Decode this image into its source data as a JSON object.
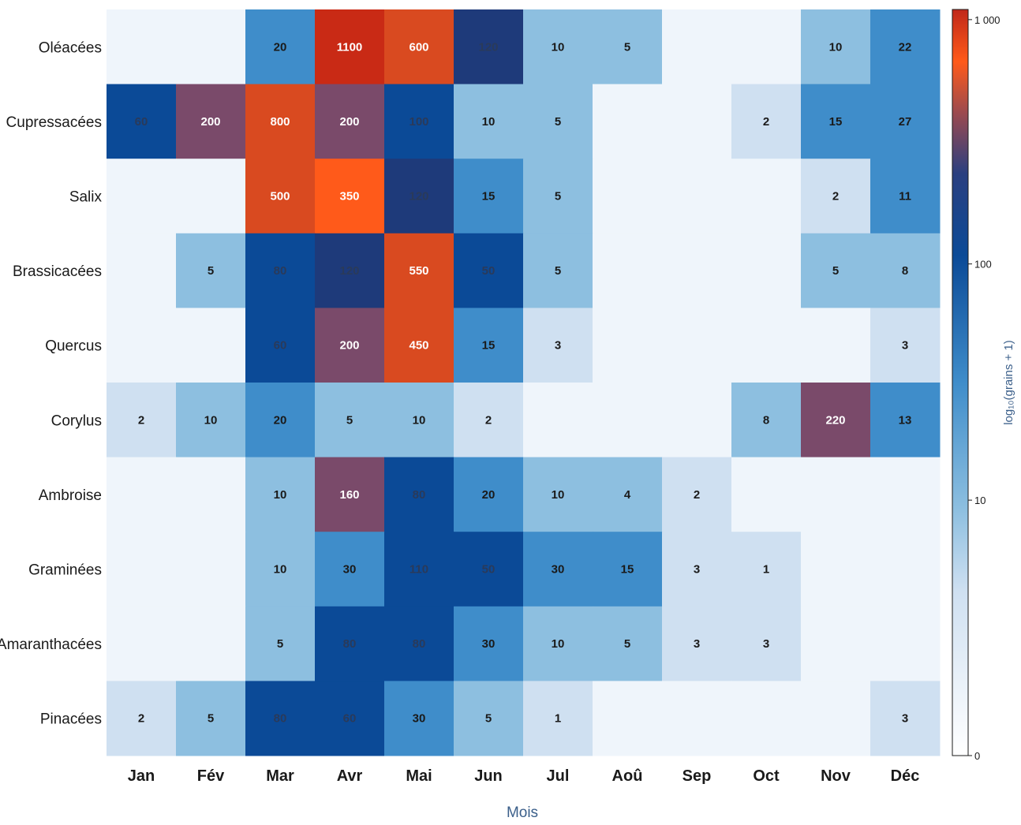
{
  "chart_data": {
    "type": "heatmap",
    "xlabel": "Mois",
    "colorbar_label": "log₁₀(grains + 1)",
    "colorbar_ticks": [
      {
        "value": 0,
        "label": "0"
      },
      {
        "value": 10,
        "label": "10"
      },
      {
        "value": 100,
        "label": "100"
      },
      {
        "value": 1000,
        "label": "1 000"
      }
    ],
    "colorbar_range": [
      0,
      1100
    ],
    "colors": {
      "empty": "#eff5fb",
      "low": "#cfe0f1",
      "mid": "#8dbfe0",
      "blue": "#3f8dca",
      "dark": "#0b4a97",
      "navy": "#1e3a7a",
      "purple": "#7a4a6a",
      "red": "#d94a20",
      "orange": "#ff5a1a",
      "top": "#c92a15"
    },
    "columns": [
      "Jan",
      "Fév",
      "Mar",
      "Avr",
      "Mai",
      "Jun",
      "Jul",
      "Aoû",
      "Sep",
      "Oct",
      "Nov",
      "Déc"
    ],
    "rows": [
      "Oléacées",
      "Cupressacées",
      "Salix",
      "Brassicacées",
      "Quercus",
      "Corylus",
      "Ambroise",
      "Graminées",
      "Amaranthacées",
      "Pinacées"
    ],
    "values": [
      [
        null,
        null,
        20,
        1100,
        600,
        120,
        10,
        5,
        null,
        null,
        10,
        22
      ],
      [
        60,
        200,
        800,
        200,
        100,
        10,
        5,
        null,
        null,
        2,
        15,
        27
      ],
      [
        null,
        null,
        500,
        350,
        120,
        15,
        5,
        null,
        null,
        null,
        2,
        11
      ],
      [
        null,
        5,
        80,
        120,
        550,
        50,
        5,
        null,
        null,
        null,
        5,
        8
      ],
      [
        null,
        null,
        60,
        200,
        450,
        15,
        3,
        null,
        null,
        null,
        null,
        3
      ],
      [
        2,
        10,
        20,
        5,
        10,
        2,
        null,
        null,
        null,
        8,
        220,
        13
      ],
      [
        null,
        null,
        10,
        160,
        80,
        20,
        10,
        4,
        2,
        null,
        null,
        null
      ],
      [
        null,
        null,
        10,
        30,
        110,
        50,
        30,
        15,
        3,
        1,
        null,
        null
      ],
      [
        null,
        null,
        5,
        80,
        80,
        30,
        10,
        5,
        3,
        3,
        null,
        null
      ],
      [
        2,
        5,
        80,
        60,
        30,
        5,
        1,
        null,
        null,
        null,
        null,
        3
      ]
    ]
  }
}
